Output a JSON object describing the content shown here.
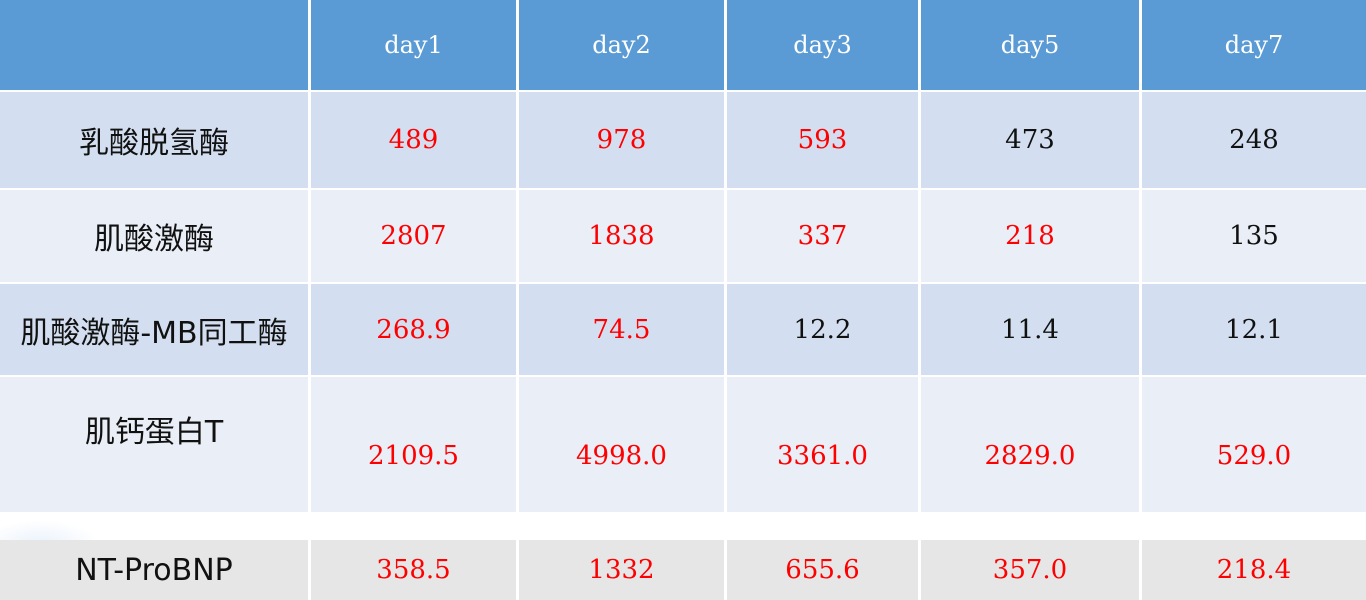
{
  "table": {
    "header": [
      "",
      "day1",
      "day2",
      "day3",
      "day5",
      "day7"
    ],
    "rows": [
      {
        "label": "乳酸脱氢酶",
        "cells": [
          {
            "value": "489",
            "color": "#ff0000"
          },
          {
            "value": "978",
            "color": "#ff0000"
          },
          {
            "value": "593",
            "color": "#ff0000"
          },
          {
            "value": "473",
            "color": "#111111"
          },
          {
            "value": "248",
            "color": "#111111"
          }
        ]
      },
      {
        "label": "肌酸激酶",
        "cells": [
          {
            "value": "2807",
            "color": "#ff0000"
          },
          {
            "value": "1838",
            "color": "#ff0000"
          },
          {
            "value": "337",
            "color": "#ff0000"
          },
          {
            "value": "218",
            "color": "#ff0000"
          },
          {
            "value": "135",
            "color": "#111111"
          }
        ]
      },
      {
        "label": "肌酸激酶-MB同工酶",
        "cells": [
          {
            "value": "268.9",
            "color": "#ff0000"
          },
          {
            "value": "74.5",
            "color": "#ff0000"
          },
          {
            "value": "12.2",
            "color": "#111111"
          },
          {
            "value": "11.4",
            "color": "#111111"
          },
          {
            "value": "12.1",
            "color": "#111111"
          }
        ]
      },
      {
        "label": "肌钙蛋白T",
        "cells": [
          {
            "value": "2109.5",
            "color": "#ff0000"
          },
          {
            "value": "4998.0",
            "color": "#ff0000"
          },
          {
            "value": "3361.0",
            "color": "#ff0000"
          },
          {
            "value": "2829.0",
            "color": "#ff0000"
          },
          {
            "value": "529.0",
            "color": "#ff0000"
          }
        ]
      },
      {
        "label": "NT-ProBNP",
        "cells": [
          {
            "value": "358.5",
            "color": "#ff0000"
          },
          {
            "value": "1332",
            "color": "#ff0000"
          },
          {
            "value": "655.6",
            "color": "#ff0000"
          },
          {
            "value": "357.0",
            "color": "#ff0000"
          },
          {
            "value": "218.4",
            "color": "#ff0000"
          }
        ]
      }
    ]
  },
  "colors": {
    "header_bg": "#5b9bd5",
    "row_dark": "#d3dff0",
    "row_light": "#e9eef7",
    "row_gray": "#e6e6e6",
    "highlight": "#ff0000"
  }
}
